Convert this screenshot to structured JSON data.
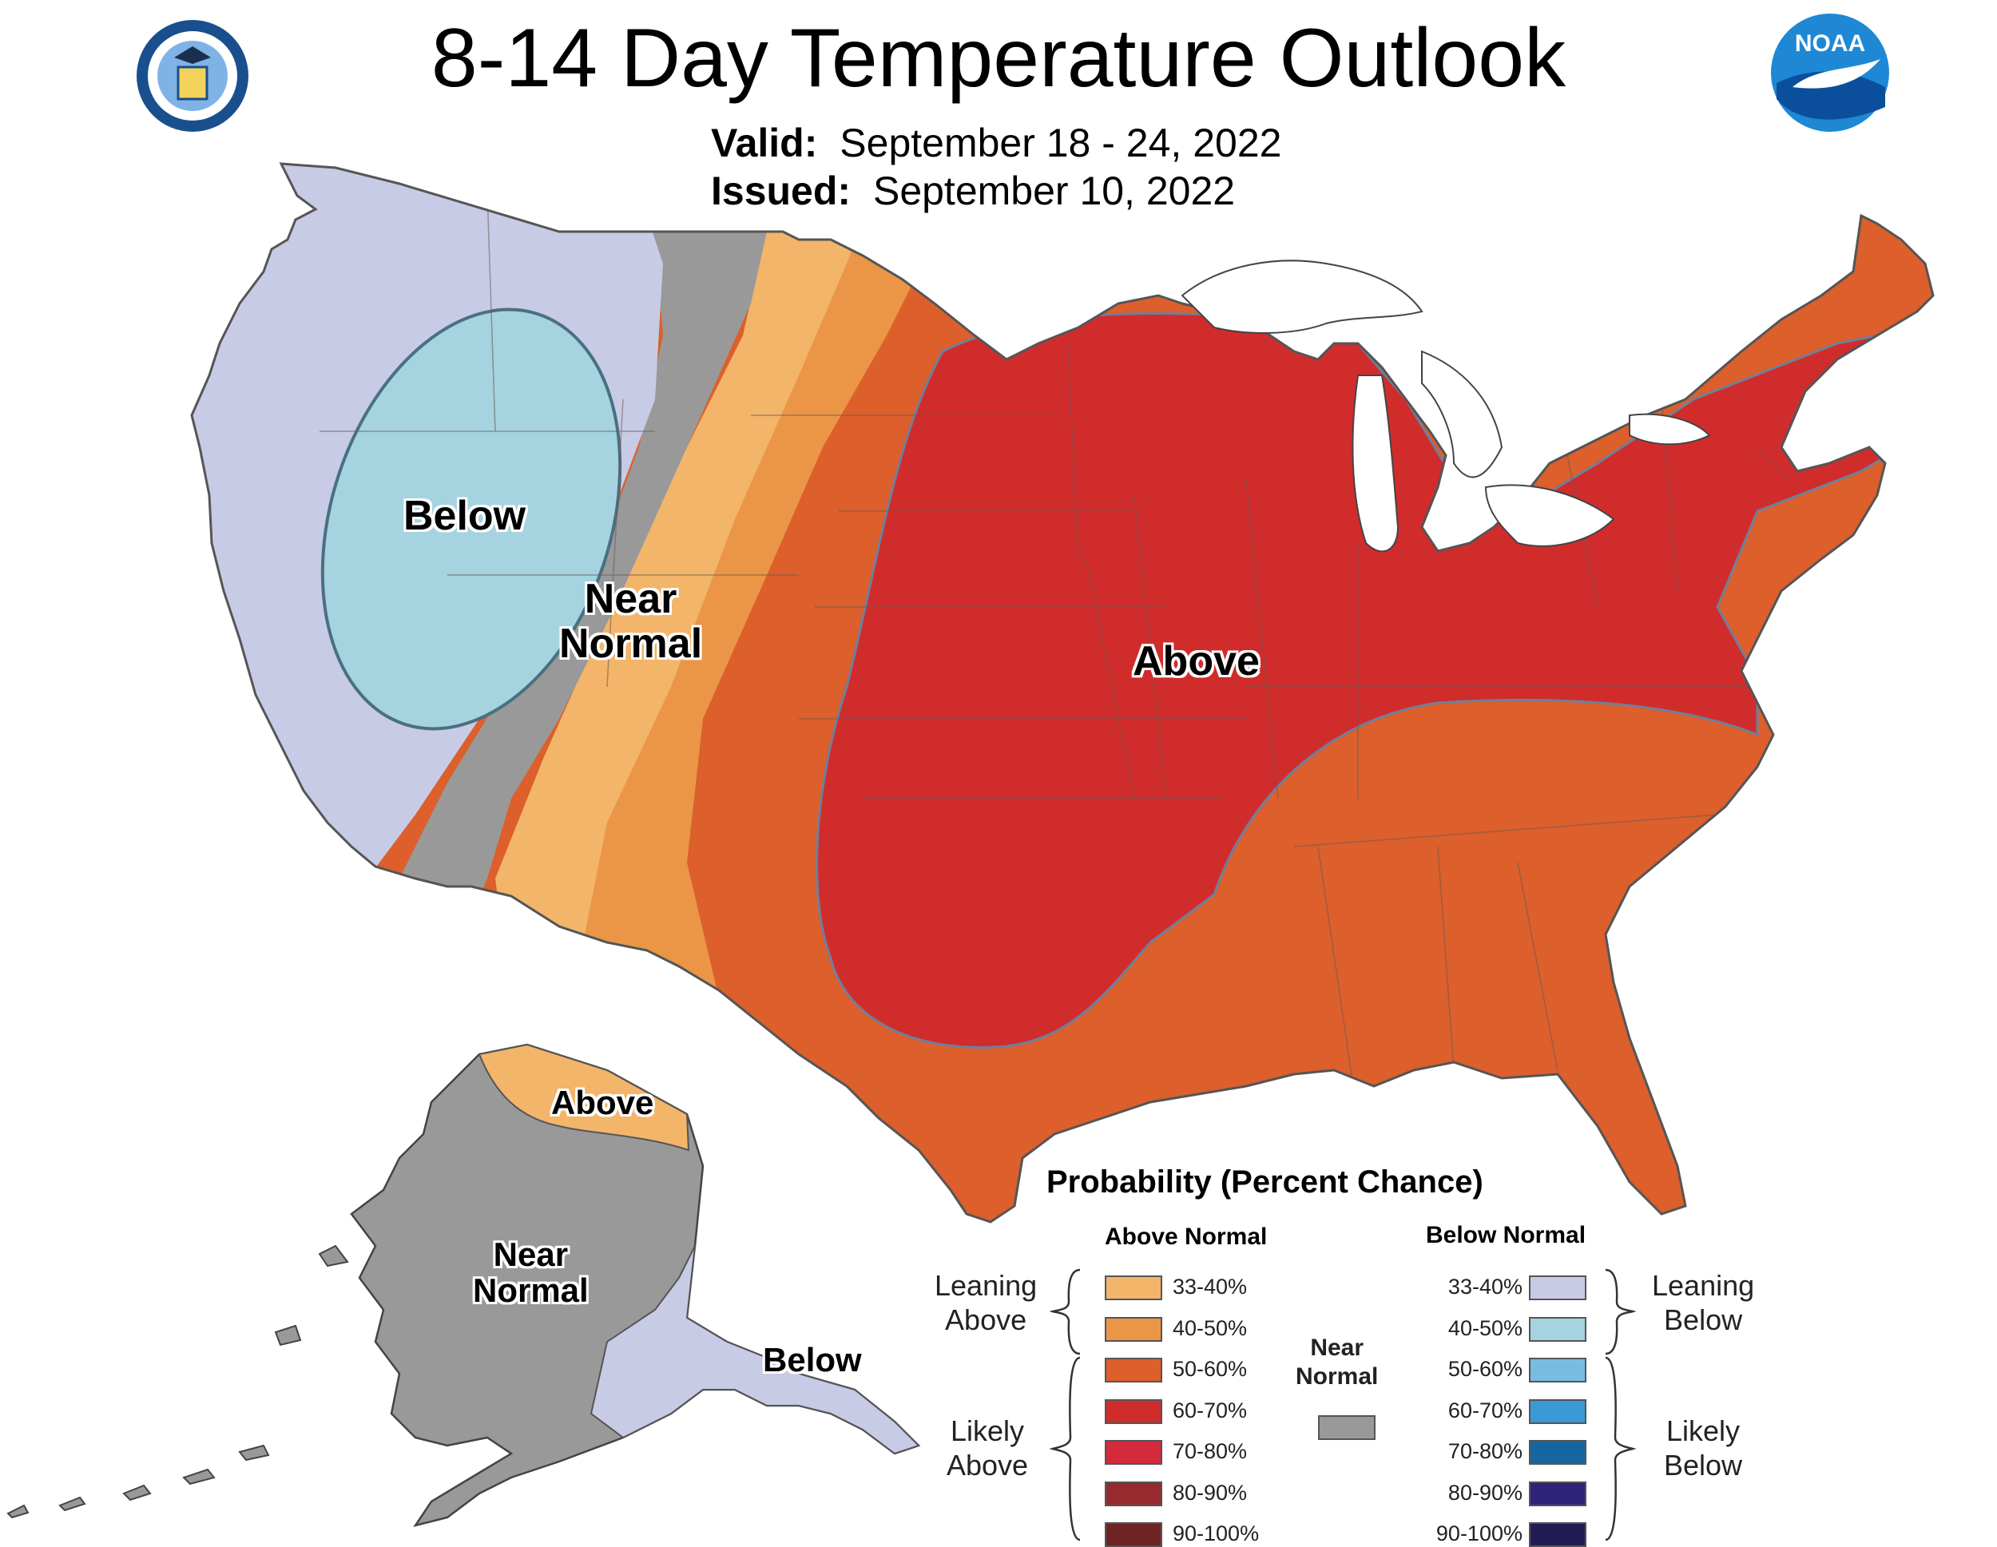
{
  "title": "8-14 Day Temperature Outlook",
  "valid_label": "Valid:",
  "valid_value": "September 18 - 24, 2022",
  "issued_label": "Issued:",
  "issued_value": "September 10, 2022",
  "map_labels": {
    "below": "Below",
    "near_normal_l1": "Near",
    "near_normal_l2": "Normal",
    "above": "Above",
    "ak_above": "Above",
    "ak_near_l1": "Near",
    "ak_near_l2": "Normal",
    "ak_below": "Below"
  },
  "legend": {
    "title": "Probability (Percent Chance)",
    "above_heading": "Above Normal",
    "below_heading": "Below Normal",
    "near_l1": "Near",
    "near_l2": "Normal",
    "leaning_above_l1": "Leaning",
    "leaning_above_l2": "Above",
    "likely_above_l1": "Likely",
    "likely_above_l2": "Above",
    "leaning_below_l1": "Leaning",
    "leaning_below_l2": "Below",
    "likely_below_l1": "Likely",
    "likely_below_l2": "Below",
    "ranges": [
      "33-40%",
      "40-50%",
      "50-60%",
      "60-70%",
      "70-80%",
      "80-90%",
      "90-100%"
    ],
    "above_colors": [
      "#f2b56a",
      "#eb9646",
      "#dc5f2c",
      "#d12c2c",
      "#d42a3c",
      "#962a2e",
      "#6e2424"
    ],
    "below_colors": [
      "#c8cbe6",
      "#a5d3df",
      "#78bde0",
      "#3a9ad5",
      "#14679e",
      "#2e2378",
      "#221c55"
    ],
    "near_color": "#999999"
  },
  "logos": {
    "doc_seal": "department-of-commerce-seal",
    "noaa_logo": "noaa-logo",
    "noaa_text": "NOAA"
  }
}
